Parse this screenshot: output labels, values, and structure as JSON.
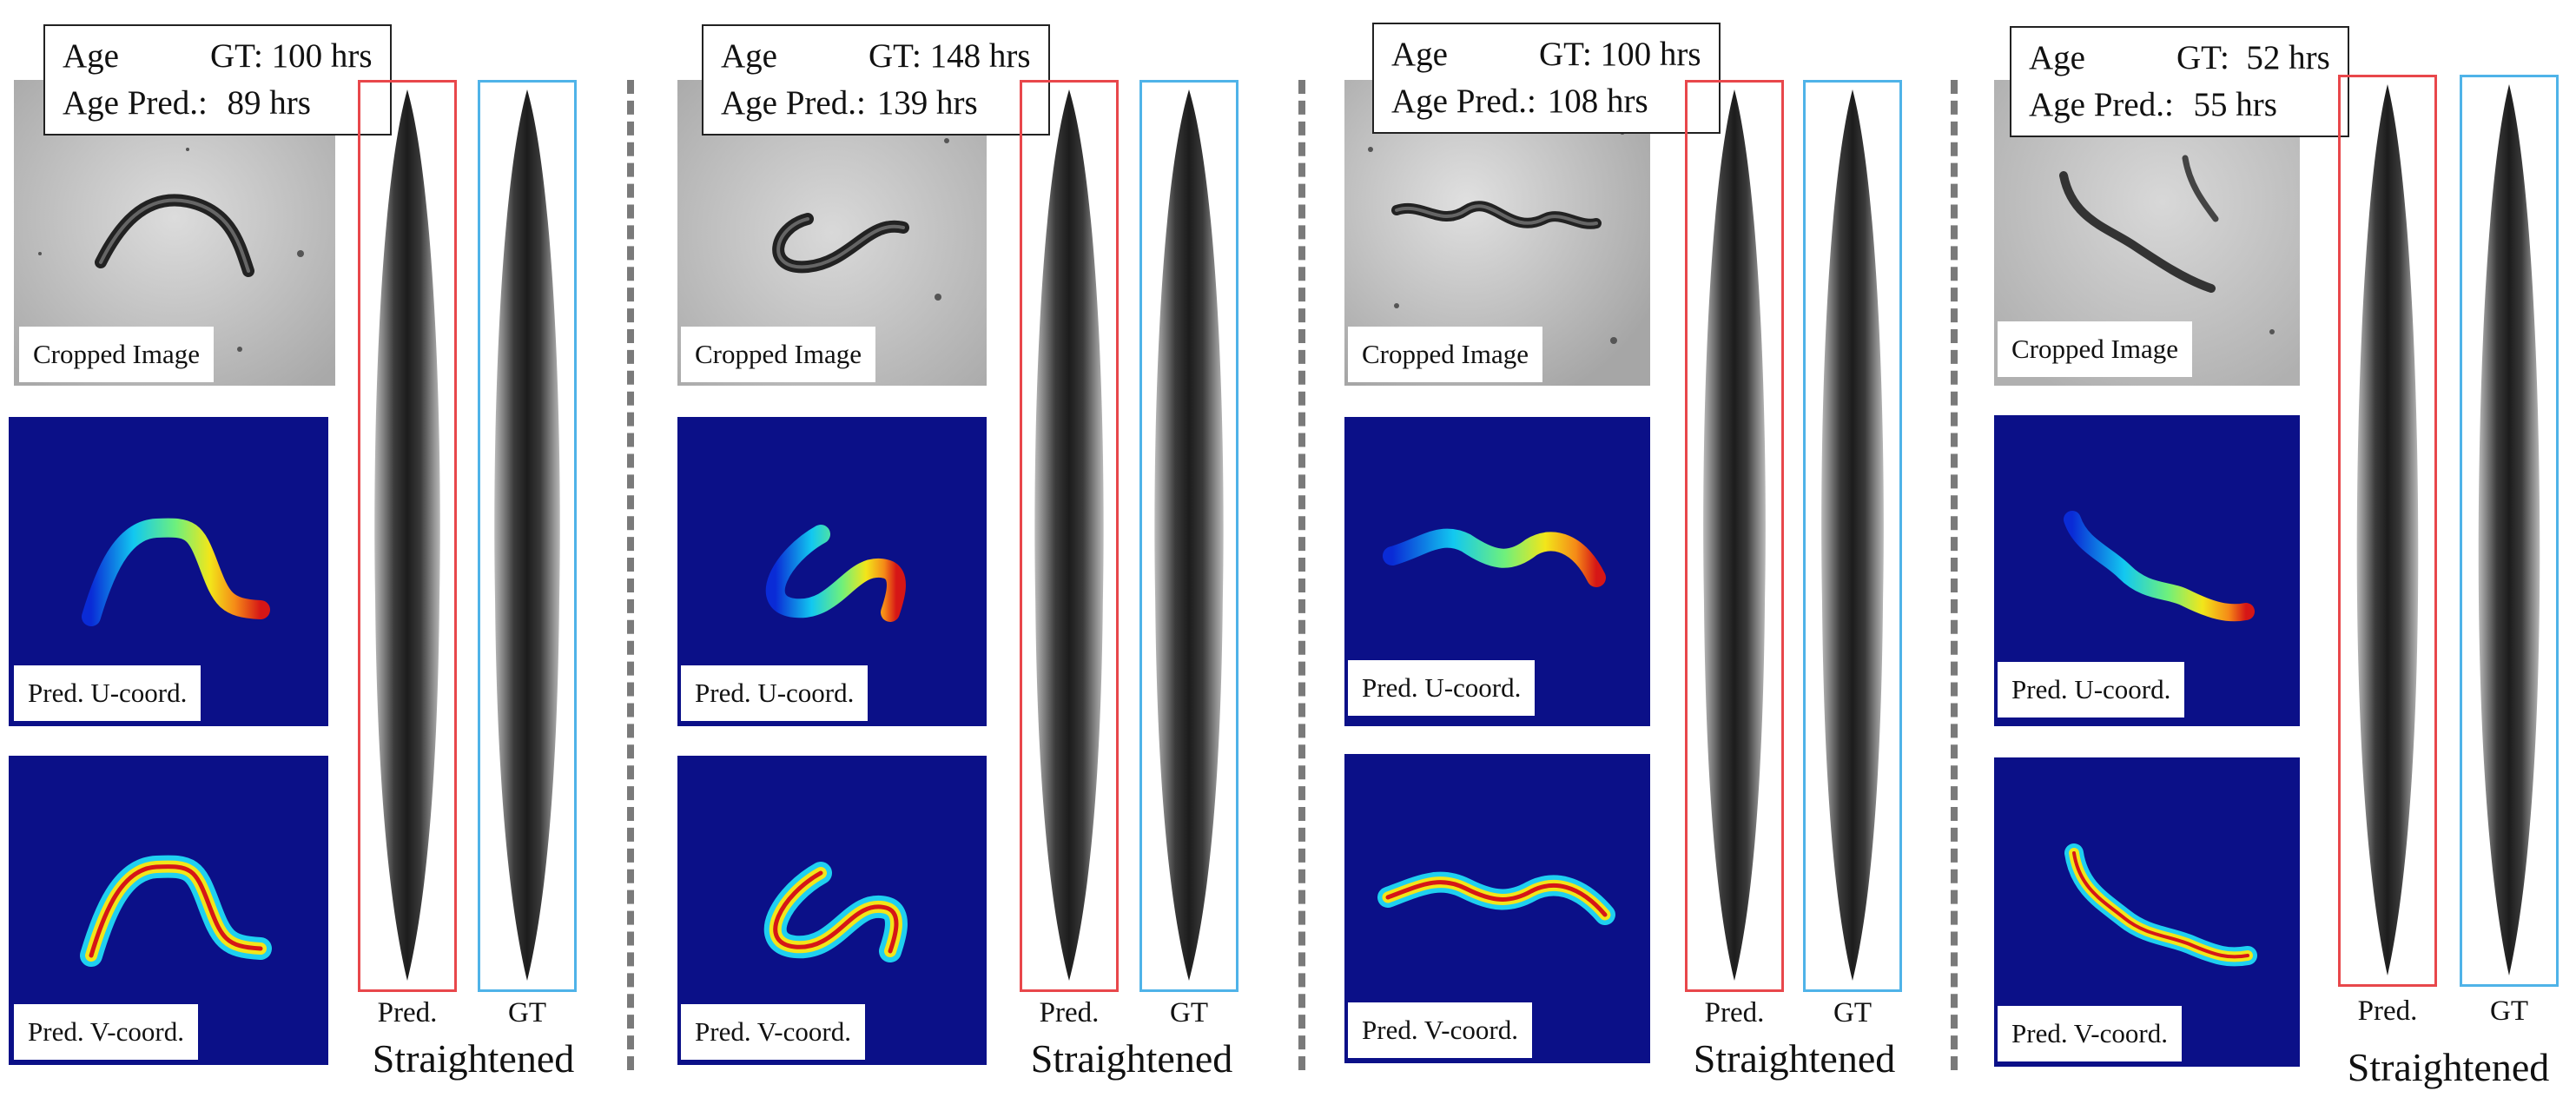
{
  "colors": {
    "colormap_background": "#0b1088",
    "pred_frame": "#e8474b",
    "gt_frame": "#4fb3e8",
    "divider": "#7a7a7a"
  },
  "panels": [
    {
      "age_label": "Age",
      "gt_label": "GT:",
      "gt_value": "100 hrs",
      "pred_label": "Age Pred.:",
      "pred_value": "89 hrs",
      "cropped_caption": "Cropped Image",
      "u_caption": "Pred. U-coord.",
      "v_caption": "Pred. V-coord.",
      "strip_pred_caption": "Pred.",
      "strip_gt_caption": "GT",
      "straightened_caption": "Straightened"
    },
    {
      "age_label": "Age",
      "gt_label": "GT:",
      "gt_value": "148 hrs",
      "pred_label": "Age Pred.:",
      "pred_value": "139 hrs",
      "cropped_caption": "Cropped Image",
      "u_caption": "Pred. U-coord.",
      "v_caption": "Pred. V-coord.",
      "strip_pred_caption": "Pred.",
      "strip_gt_caption": "GT",
      "straightened_caption": "Straightened"
    },
    {
      "age_label": "Age",
      "gt_label": "GT:",
      "gt_value": "100 hrs",
      "pred_label": "Age Pred.:",
      "pred_value": "108 hrs",
      "cropped_caption": "Cropped Image",
      "u_caption": "Pred. U-coord.",
      "v_caption": "Pred. V-coord.",
      "strip_pred_caption": "Pred.",
      "strip_gt_caption": "GT",
      "straightened_caption": "Straightened"
    },
    {
      "age_label": "Age",
      "gt_label": "GT:",
      "gt_value": "52 hrs",
      "pred_label": "Age Pred.:",
      "pred_value": "55 hrs",
      "cropped_caption": "Cropped Image",
      "u_caption": "Pred. U-coord.",
      "v_caption": "Pred. V-coord.",
      "strip_pred_caption": "Pred.",
      "strip_gt_caption": "GT",
      "straightened_caption": "Straightened"
    }
  ]
}
